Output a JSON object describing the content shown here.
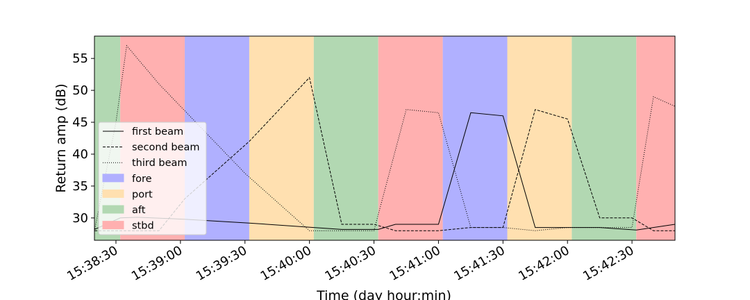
{
  "chart_data": {
    "type": "line",
    "xlabel": "Time (day hour:min)",
    "ylabel": "Return amp (dB)",
    "xlim": [
      "15:38:20",
      "15:42:50"
    ],
    "ylim": [
      26.5,
      58.5
    ],
    "x_ticks": [
      "15:38:30",
      "15:39:00",
      "15:39:30",
      "15:40:00",
      "15:40:30",
      "15:41:00",
      "15:41:30",
      "15:42:00",
      "15:42:30"
    ],
    "y_ticks": [
      30,
      35,
      40,
      45,
      50,
      55
    ],
    "background_bands": [
      {
        "start": "15:38:20",
        "end": "15:38:32",
        "label": "aft"
      },
      {
        "start": "15:38:32",
        "end": "15:39:02",
        "label": "stbd"
      },
      {
        "start": "15:39:02",
        "end": "15:39:32",
        "label": "fore"
      },
      {
        "start": "15:39:32",
        "end": "15:40:02",
        "label": "port"
      },
      {
        "start": "15:40:02",
        "end": "15:40:32",
        "label": "aft"
      },
      {
        "start": "15:40:32",
        "end": "15:41:02",
        "label": "stbd"
      },
      {
        "start": "15:41:02",
        "end": "15:41:32",
        "label": "fore"
      },
      {
        "start": "15:41:32",
        "end": "15:42:02",
        "label": "port"
      },
      {
        "start": "15:42:02",
        "end": "15:42:32",
        "label": "aft"
      },
      {
        "start": "15:42:32",
        "end": "15:42:50",
        "label": "stbd"
      }
    ],
    "band_colors": {
      "fore": "#b0b0ff",
      "port": "#ffe0b0",
      "aft": "#b2d8b2",
      "stbd": "#ffb0b0"
    },
    "series": [
      {
        "name": "first beam",
        "dash": "solid",
        "x": [
          "15:38:20",
          "15:38:32",
          "15:38:40",
          "15:39:02",
          "15:39:32",
          "15:40:02",
          "15:40:15",
          "15:40:32",
          "15:40:40",
          "15:41:00",
          "15:41:15",
          "15:41:30",
          "15:41:45",
          "15:42:00",
          "15:42:15",
          "15:42:32",
          "15:42:50"
        ],
        "values": [
          28.2,
          30.0,
          30.1,
          29.8,
          29.2,
          28.5,
          28.2,
          28.2,
          29.0,
          29.0,
          46.5,
          46.0,
          28.5,
          28.5,
          28.5,
          28.1,
          29.0
        ]
      },
      {
        "name": "second beam",
        "dash": "dashed",
        "x": [
          "15:38:20",
          "15:38:32",
          "15:38:50",
          "15:39:02",
          "15:39:32",
          "15:40:00",
          "15:40:15",
          "15:40:30",
          "15:40:40",
          "15:41:00",
          "15:41:15",
          "15:41:30",
          "15:41:45",
          "15:42:00",
          "15:42:15",
          "15:42:30",
          "15:42:40",
          "15:42:50"
        ],
        "values": [
          28.0,
          28.0,
          28.0,
          33.0,
          42.0,
          52.0,
          29.0,
          29.0,
          28.0,
          28.0,
          28.5,
          28.5,
          47.0,
          45.5,
          30.0,
          30.0,
          28.0,
          28.0
        ]
      },
      {
        "name": "third beam",
        "dash": "dotted",
        "x": [
          "15:38:20",
          "15:38:30",
          "15:38:35",
          "15:38:50",
          "15:39:10",
          "15:39:30",
          "15:40:00",
          "15:40:30",
          "15:40:45",
          "15:41:00",
          "15:41:15",
          "15:41:30",
          "15:41:45",
          "15:42:00",
          "15:42:30",
          "15:42:40",
          "15:42:50"
        ],
        "values": [
          28.0,
          45.0,
          57.0,
          51.0,
          44.0,
          37.0,
          28.0,
          28.0,
          47.0,
          46.5,
          28.5,
          28.5,
          28.0,
          28.5,
          28.5,
          49.0,
          47.5
        ]
      }
    ],
    "legend": {
      "position": "lower-left",
      "entries": [
        {
          "label": "first beam",
          "kind": "line",
          "dash": "solid"
        },
        {
          "label": "second beam",
          "kind": "line",
          "dash": "dashed"
        },
        {
          "label": "third beam",
          "kind": "line",
          "dash": "dotted"
        },
        {
          "label": "fore",
          "kind": "patch",
          "band": "fore"
        },
        {
          "label": "port",
          "kind": "patch",
          "band": "port"
        },
        {
          "label": "aft",
          "kind": "patch",
          "band": "aft"
        },
        {
          "label": "stbd",
          "kind": "patch",
          "band": "stbd"
        }
      ]
    },
    "grid": false
  }
}
